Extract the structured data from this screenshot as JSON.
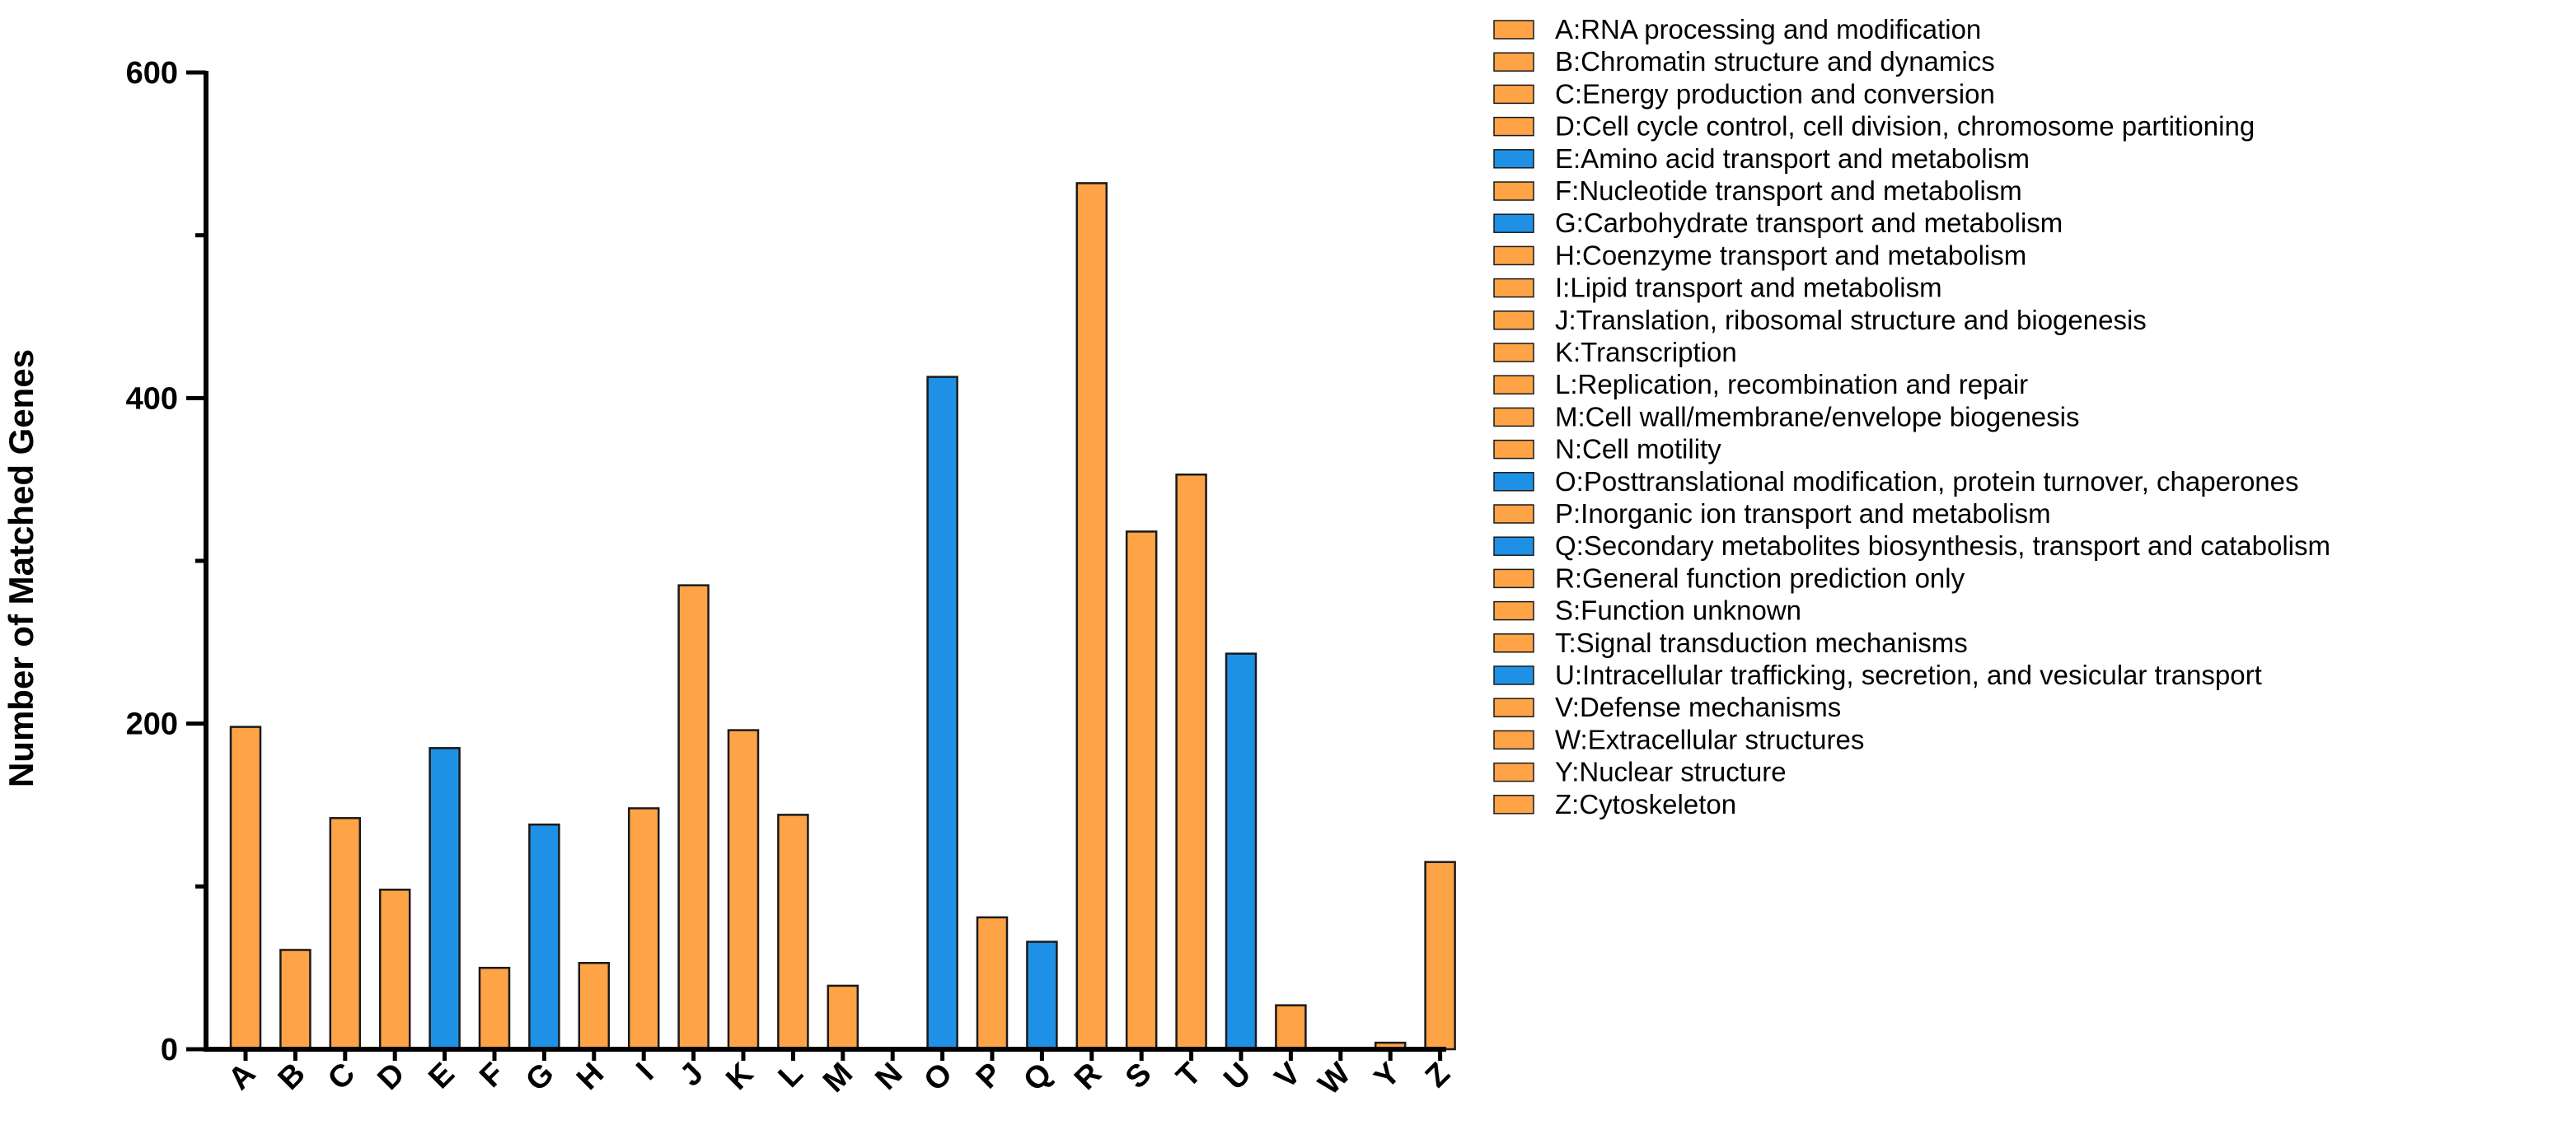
{
  "chart_data": {
    "type": "bar",
    "ylabel": "Number of Matched Genes",
    "xlabel": "",
    "ylim": [
      0,
      600
    ],
    "yticks": [
      0,
      200,
      400,
      600
    ],
    "colors": {
      "orange": "#FFA347",
      "blue": "#1E90E6",
      "edge": "#1a1a1a"
    },
    "categories": [
      "A",
      "B",
      "C",
      "D",
      "E",
      "F",
      "G",
      "H",
      "I",
      "J",
      "K",
      "L",
      "M",
      "N",
      "O",
      "P",
      "Q",
      "R",
      "S",
      "T",
      "U",
      "V",
      "W",
      "Y",
      "Z"
    ],
    "values": [
      198,
      61,
      142,
      98,
      185,
      50,
      138,
      53,
      148,
      285,
      196,
      144,
      39,
      0,
      413,
      81,
      66,
      532,
      318,
      353,
      243,
      27,
      0,
      4,
      115
    ],
    "bar_colors": [
      "orange",
      "orange",
      "orange",
      "orange",
      "blue",
      "orange",
      "blue",
      "orange",
      "orange",
      "orange",
      "orange",
      "orange",
      "orange",
      "orange",
      "blue",
      "orange",
      "blue",
      "orange",
      "orange",
      "orange",
      "blue",
      "orange",
      "orange",
      "orange",
      "orange"
    ],
    "legend": [
      {
        "label": "A:RNA processing and modification",
        "color": "orange"
      },
      {
        "label": "B:Chromatin structure and dynamics",
        "color": "orange"
      },
      {
        "label": "C:Energy production and conversion",
        "color": "orange"
      },
      {
        "label": "D:Cell cycle control, cell division, chromosome partitioning",
        "color": "orange"
      },
      {
        "label": "E:Amino acid transport and metabolism",
        "color": "blue"
      },
      {
        "label": "F:Nucleotide transport and metabolism",
        "color": "orange"
      },
      {
        "label": "G:Carbohydrate transport and metabolism",
        "color": "blue"
      },
      {
        "label": "H:Coenzyme transport and metabolism",
        "color": "orange"
      },
      {
        "label": "I:Lipid transport and metabolism",
        "color": "orange"
      },
      {
        "label": "J:Translation, ribosomal structure and biogenesis",
        "color": "orange"
      },
      {
        "label": "K:Transcription",
        "color": "orange"
      },
      {
        "label": "L:Replication, recombination and repair",
        "color": "orange"
      },
      {
        "label": "M:Cell wall/membrane/envelope biogenesis",
        "color": "orange"
      },
      {
        "label": "N:Cell motility",
        "color": "orange"
      },
      {
        "label": "O:Posttranslational modification, protein turnover, chaperones",
        "color": "blue"
      },
      {
        "label": "P:Inorganic ion transport and metabolism",
        "color": "orange"
      },
      {
        "label": "Q:Secondary metabolites biosynthesis, transport and catabolism",
        "color": "blue"
      },
      {
        "label": "R:General function prediction only",
        "color": "orange"
      },
      {
        "label": "S:Function unknown",
        "color": "orange"
      },
      {
        "label": "T:Signal transduction mechanisms",
        "color": "orange"
      },
      {
        "label": "U:Intracellular trafficking, secretion, and vesicular transport",
        "color": "blue"
      },
      {
        "label": "V:Defense mechanisms",
        "color": "orange"
      },
      {
        "label": "W:Extracellular structures",
        "color": "orange"
      },
      {
        "label": "Y:Nuclear structure",
        "color": "orange"
      },
      {
        "label": "Z:Cytoskeleton",
        "color": "orange"
      }
    ]
  }
}
